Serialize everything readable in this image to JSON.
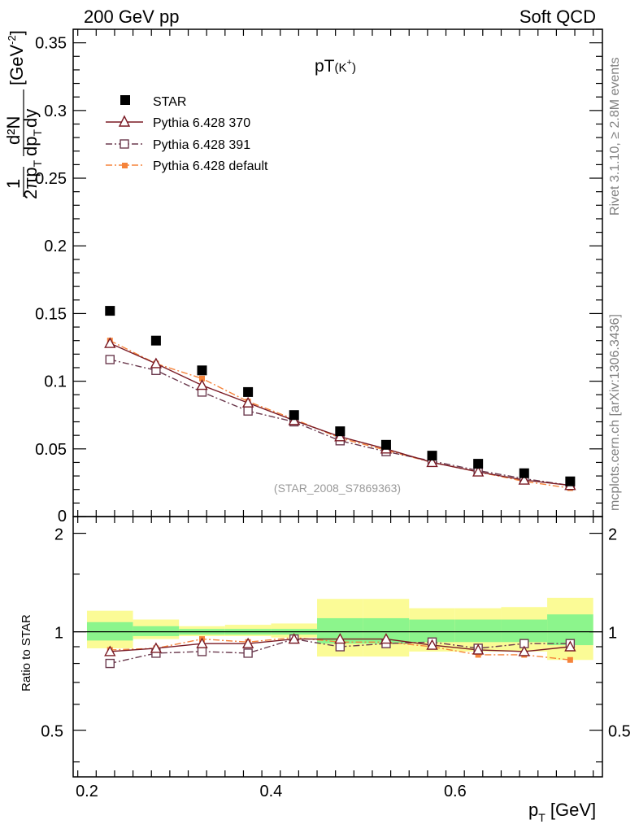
{
  "header": {
    "left": "200 GeV pp",
    "right": "Soft QCD"
  },
  "side_labels": {
    "rivet": "Rivet 3.1.10, ≥ 2.8M events",
    "mcplots": "mcplots.cern.ch [arXiv:1306.3436]"
  },
  "colors": {
    "star": "#000000",
    "p370": "#7a1a24",
    "p391": "#6b3a4e",
    "pdef": "#f5833a",
    "band_inner": "#8cf58c",
    "band_outer": "#fbfb96"
  },
  "chart_data": [
    {
      "type": "scatter",
      "title": "pT(K⁺)",
      "title_main": "pT",
      "title_sub": "(K",
      "title_sup": "+",
      "title_close": ")",
      "watermark": "(STAR_2008_S7869363)",
      "xlabel": "p_T [GeV]",
      "xlabel_main": "p",
      "xlabel_sub": "T",
      "xlabel_rest": " [GeV]",
      "ylabel": "1/(2π p_T) d²N/(dp_T dy) [GeV⁻²]",
      "ylabel_parts": {
        "one": "1",
        "two_pi": "2πp",
        "t1": "T",
        "d2n": "d²N",
        "dp": "dp",
        "t2": "T",
        "dy": "dy",
        "unit": "[GeV",
        "unit_sup": "-2",
        "unit_close": "]"
      },
      "xlim": [
        0.185,
        0.76
      ],
      "ylim": [
        0,
        0.36
      ],
      "x_ticks": [
        "0.2",
        "0.4",
        "0.6"
      ],
      "x_tick_values": [
        0.2,
        0.4,
        0.6
      ],
      "y_ticks": [
        "0.05",
        "0.1",
        "0.15",
        "0.2",
        "0.25",
        "0.3",
        "0.35"
      ],
      "y_tick_values": [
        0.05,
        0.1,
        0.15,
        0.2,
        0.25,
        0.3,
        0.35
      ],
      "y_zero_label": "0",
      "x": [
        0.225,
        0.275,
        0.325,
        0.375,
        0.425,
        0.475,
        0.525,
        0.575,
        0.625,
        0.675,
        0.725
      ],
      "series": [
        {
          "name": "STAR",
          "marker": "square-filled",
          "values": [
            0.152,
            0.13,
            0.108,
            0.092,
            0.075,
            0.063,
            0.053,
            0.045,
            0.039,
            0.032,
            0.026
          ]
        },
        {
          "name": "Pythia 6.428 370",
          "marker": "triangle-open",
          "line": "solid",
          "values": [
            0.128,
            0.113,
            0.097,
            0.084,
            0.071,
            0.059,
            0.05,
            0.04,
            0.033,
            0.027,
            0.023
          ]
        },
        {
          "name": "Pythia 6.428 391",
          "marker": "square-open",
          "line": "dashdot",
          "values": [
            0.116,
            0.108,
            0.092,
            0.078,
            0.07,
            0.056,
            0.048,
            0.041,
            0.034,
            0.028,
            0.023
          ]
        },
        {
          "name": "Pythia 6.428 default",
          "marker": "square-filled-small",
          "line": "dashdot",
          "values": [
            0.13,
            0.113,
            0.102,
            0.085,
            0.072,
            0.058,
            0.049,
            0.04,
            0.033,
            0.026,
            0.021
          ]
        }
      ]
    },
    {
      "type": "scatter",
      "ylabel": "Ratio to STAR",
      "xlim": [
        0.185,
        0.76
      ],
      "ylim": [
        0.36,
        2.25
      ],
      "scale": "log",
      "y_ticks": [
        "0.5",
        "1",
        "2"
      ],
      "y_tick_values": [
        0.5,
        1,
        2
      ],
      "bins": [
        [
          0.2,
          0.25
        ],
        [
          0.25,
          0.3
        ],
        [
          0.3,
          0.35
        ],
        [
          0.35,
          0.4
        ],
        [
          0.4,
          0.45
        ],
        [
          0.45,
          0.5
        ],
        [
          0.5,
          0.55
        ],
        [
          0.55,
          0.6
        ],
        [
          0.6,
          0.65
        ],
        [
          0.65,
          0.7
        ],
        [
          0.7,
          0.75
        ]
      ],
      "band_inner": [
        [
          0.94,
          1.07
        ],
        [
          0.97,
          1.04
        ],
        [
          0.98,
          1.02
        ],
        [
          0.98,
          1.02
        ],
        [
          0.98,
          1.02
        ],
        [
          0.92,
          1.1
        ],
        [
          0.92,
          1.1
        ],
        [
          0.93,
          1.09
        ],
        [
          0.93,
          1.09
        ],
        [
          0.93,
          1.09
        ],
        [
          0.91,
          1.13
        ]
      ],
      "band_outer": [
        [
          0.89,
          1.16
        ],
        [
          0.95,
          1.09
        ],
        [
          0.97,
          1.04
        ],
        [
          0.97,
          1.05
        ],
        [
          0.96,
          1.06
        ],
        [
          0.84,
          1.26
        ],
        [
          0.84,
          1.26
        ],
        [
          0.87,
          1.18
        ],
        [
          0.87,
          1.18
        ],
        [
          0.87,
          1.19
        ],
        [
          0.82,
          1.27
        ]
      ],
      "series": [
        {
          "name": "Pythia 6.428 370",
          "values": [
            0.87,
            0.89,
            0.92,
            0.92,
            0.95,
            0.95,
            0.95,
            0.91,
            0.88,
            0.87,
            0.9
          ]
        },
        {
          "name": "Pythia 6.428 391",
          "values": [
            0.8,
            0.86,
            0.87,
            0.86,
            0.95,
            0.9,
            0.92,
            0.93,
            0.89,
            0.92,
            0.92
          ]
        },
        {
          "name": "Pythia 6.428 default",
          "values": [
            0.88,
            0.89,
            0.95,
            0.93,
            0.96,
            0.93,
            0.93,
            0.9,
            0.85,
            0.85,
            0.82
          ]
        }
      ]
    }
  ]
}
